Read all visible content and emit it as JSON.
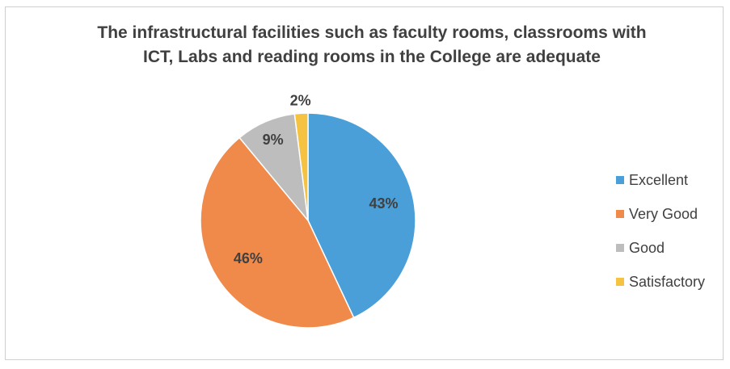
{
  "chart_data": {
    "type": "pie",
    "title": "The infrastructural facilities such as faculty rooms, classrooms with ICT, Labs and reading rooms in the College are adequate",
    "title_lines": [
      "The infrastructural facilities such as faculty rooms, classrooms with",
      "ICT, Labs and reading rooms in the College are adequate"
    ],
    "categories": [
      "Excellent",
      "Very Good",
      "Good",
      "Satisfactory"
    ],
    "values": [
      43,
      46,
      9,
      2
    ],
    "labels": [
      "43%",
      "46%",
      "9%",
      "2%"
    ],
    "colors": [
      "#4a9fd8",
      "#f08a4b",
      "#bdbdbd",
      "#f5c242"
    ],
    "legend_position": "right",
    "start_angle": "12 o'clock",
    "direction": "clockwise"
  }
}
